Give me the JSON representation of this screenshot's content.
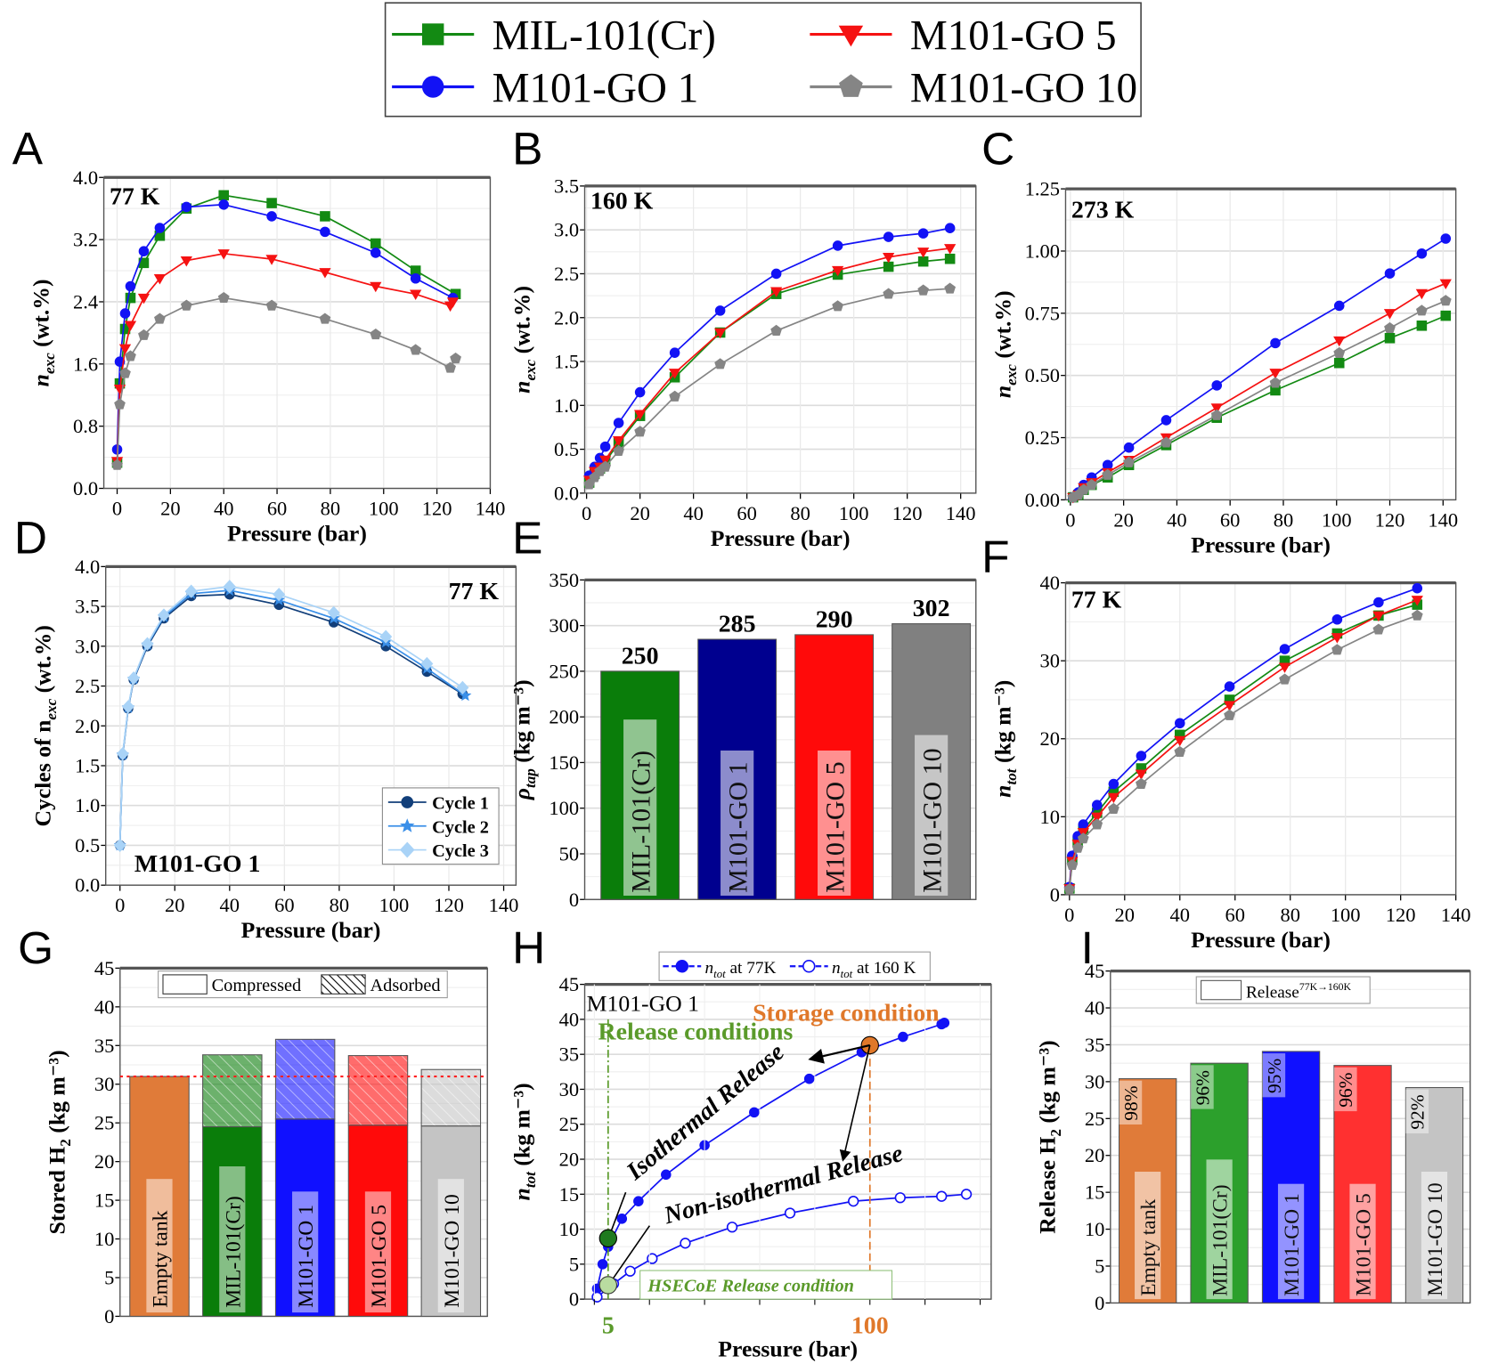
{
  "legend": {
    "items": [
      {
        "name": "MIL-101(Cr)",
        "color": "#138a13",
        "marker": "square"
      },
      {
        "name": "M101-GO 1",
        "color": "#1212f5",
        "marker": "circle"
      },
      {
        "name": "M101-GO 5",
        "color": "#f51212",
        "marker": "triangle-down"
      },
      {
        "name": "M101-GO 10",
        "color": "#858585",
        "marker": "pentagon"
      }
    ]
  },
  "chart_data": [
    {
      "panel": "A",
      "type": "line",
      "annotation": "77 K",
      "xlabel": "Pressure (bar)",
      "ylabel": {
        "sym": "n",
        "sub": "exc",
        "unit": " (wt.%)"
      },
      "ylim": [
        0,
        4.0
      ],
      "xlim": [
        0,
        140
      ],
      "grid": true,
      "yticks": [
        "0.0",
        "0.8",
        "1.6",
        "2.4",
        "3.2",
        "4.0"
      ],
      "xticks": [
        "0",
        "20",
        "40",
        "60",
        "80",
        "100",
        "120",
        "140"
      ],
      "series": [
        {
          "name": "MIL-101(Cr)",
          "x": [
            0,
            1,
            3,
            5,
            10,
            16,
            26,
            40,
            58,
            78,
            97,
            112,
            127
          ],
          "y": [
            0.33,
            1.35,
            2.05,
            2.45,
            2.9,
            3.25,
            3.6,
            3.77,
            3.67,
            3.5,
            3.15,
            2.8,
            2.5
          ]
        },
        {
          "name": "M101-GO 1",
          "x": [
            0,
            1,
            3,
            5,
            10,
            16,
            26,
            40,
            58,
            78,
            97,
            112,
            126
          ],
          "y": [
            0.5,
            1.63,
            2.25,
            2.6,
            3.05,
            3.35,
            3.62,
            3.65,
            3.5,
            3.3,
            3.03,
            2.7,
            2.45
          ]
        },
        {
          "name": "M101-GO 5",
          "x": [
            0,
            1,
            3,
            5,
            10,
            16,
            26,
            40,
            58,
            78,
            97,
            112,
            125,
            126
          ],
          "y": [
            0.35,
            1.28,
            1.8,
            2.1,
            2.45,
            2.7,
            2.93,
            3.02,
            2.95,
            2.78,
            2.6,
            2.5,
            2.35,
            2.4
          ]
        },
        {
          "name": "M101-GO 10",
          "x": [
            0,
            1,
            3,
            5,
            10,
            16,
            26,
            40,
            58,
            78,
            97,
            112,
            125,
            127
          ],
          "y": [
            0.3,
            1.08,
            1.48,
            1.7,
            1.97,
            2.18,
            2.35,
            2.45,
            2.35,
            2.18,
            1.98,
            1.78,
            1.55,
            1.67
          ]
        }
      ]
    },
    {
      "panel": "B",
      "type": "line",
      "annotation": "160 K",
      "xlabel": "Pressure (bar)",
      "ylabel": {
        "sym": "n",
        "sub": "exc",
        "unit": " (wt.%)"
      },
      "ylim": [
        0,
        3.5
      ],
      "xlim": [
        0,
        140
      ],
      "grid": true,
      "yticks": [
        "0.0",
        "0.5",
        "1.0",
        "1.5",
        "2.0",
        "2.5",
        "3.0",
        "3.5"
      ],
      "xticks": [
        "0",
        "20",
        "40",
        "60",
        "80",
        "100",
        "120",
        "140"
      ],
      "series": [
        {
          "name": "MIL-101(Cr)",
          "x": [
            1,
            3,
            5,
            7,
            12,
            20,
            33,
            50,
            71,
            94,
            113,
            126,
            136
          ],
          "y": [
            0.12,
            0.22,
            0.28,
            0.36,
            0.57,
            0.88,
            1.32,
            1.83,
            2.27,
            2.49,
            2.58,
            2.64,
            2.67
          ]
        },
        {
          "name": "M101-GO 1",
          "x": [
            1,
            3,
            5,
            7,
            12,
            20,
            33,
            50,
            71,
            94,
            113,
            126,
            136
          ],
          "y": [
            0.2,
            0.3,
            0.4,
            0.53,
            0.8,
            1.15,
            1.6,
            2.08,
            2.5,
            2.82,
            2.92,
            2.96,
            3.02
          ]
        },
        {
          "name": "M101-GO 5",
          "x": [
            1,
            3,
            5,
            7,
            12,
            20,
            33,
            50,
            71,
            94,
            113,
            126,
            136
          ],
          "y": [
            0.15,
            0.25,
            0.3,
            0.38,
            0.6,
            0.9,
            1.37,
            1.83,
            2.3,
            2.54,
            2.69,
            2.75,
            2.79
          ]
        },
        {
          "name": "M101-GO 10",
          "x": [
            1,
            3,
            5,
            7,
            12,
            20,
            33,
            50,
            71,
            94,
            113,
            126,
            136
          ],
          "y": [
            0.1,
            0.18,
            0.25,
            0.3,
            0.48,
            0.7,
            1.1,
            1.47,
            1.85,
            2.13,
            2.27,
            2.31,
            2.33
          ]
        }
      ]
    },
    {
      "panel": "C",
      "type": "line",
      "annotation": "273 K",
      "xlabel": "Pressure (bar)",
      "ylabel": {
        "sym": "n",
        "sub": "exc",
        "unit": " (wt.%)"
      },
      "ylim": [
        0,
        1.25
      ],
      "xlim": [
        0,
        140
      ],
      "grid": true,
      "yticks": [
        "0.00",
        "0.25",
        "0.50",
        "0.75",
        "1.00",
        "1.25"
      ],
      "xticks": [
        "0",
        "20",
        "40",
        "60",
        "80",
        "100",
        "120",
        "140"
      ],
      "series": [
        {
          "name": "MIL-101(Cr)",
          "x": [
            1,
            3,
            5,
            8,
            14,
            22,
            36,
            55,
            77,
            101,
            120,
            132,
            141
          ],
          "y": [
            0.01,
            0.02,
            0.04,
            0.06,
            0.09,
            0.14,
            0.22,
            0.33,
            0.44,
            0.55,
            0.65,
            0.7,
            0.74
          ]
        },
        {
          "name": "M101-GO 1",
          "x": [
            1,
            3,
            5,
            8,
            14,
            22,
            36,
            55,
            77,
            101,
            120,
            132,
            141
          ],
          "y": [
            0.01,
            0.03,
            0.06,
            0.09,
            0.14,
            0.21,
            0.32,
            0.46,
            0.63,
            0.78,
            0.91,
            0.99,
            1.05
          ]
        },
        {
          "name": "M101-GO 5",
          "x": [
            1,
            3,
            5,
            8,
            14,
            22,
            36,
            55,
            77,
            101,
            120,
            132,
            141
          ],
          "y": [
            0.01,
            0.02,
            0.05,
            0.07,
            0.11,
            0.16,
            0.25,
            0.37,
            0.51,
            0.64,
            0.75,
            0.83,
            0.87
          ]
        },
        {
          "name": "M101-GO 10",
          "x": [
            1,
            3,
            5,
            8,
            14,
            22,
            36,
            55,
            77,
            101,
            120,
            132,
            141
          ],
          "y": [
            0.01,
            0.02,
            0.04,
            0.06,
            0.1,
            0.15,
            0.23,
            0.34,
            0.47,
            0.59,
            0.69,
            0.76,
            0.8
          ]
        }
      ]
    },
    {
      "panel": "D",
      "type": "line",
      "annotation": "77 K",
      "sample": "M101-GO 1",
      "xlabel": "Pressure (bar)",
      "ylabel": {
        "sym": "Cycles of n",
        "sub": "exc",
        "unit": " (wt.%)"
      },
      "ylim": [
        0,
        4.0
      ],
      "xlim": [
        0,
        140
      ],
      "grid": true,
      "legend_position": "bottom-right",
      "yticks": [
        "0.0",
        "0.5",
        "1.0",
        "1.5",
        "2.0",
        "2.5",
        "3.0",
        "3.5",
        "4.0"
      ],
      "xticks": [
        "0",
        "20",
        "40",
        "60",
        "80",
        "100",
        "120",
        "140"
      ],
      "series": [
        {
          "name": "Cycle 1",
          "color": "#123f7a",
          "marker": "circle",
          "x": [
            0,
            1,
            3,
            5,
            10,
            16,
            26,
            40,
            58,
            78,
            97,
            112,
            125
          ],
          "y": [
            0.5,
            1.63,
            2.22,
            2.58,
            3.0,
            3.35,
            3.63,
            3.65,
            3.52,
            3.3,
            3.0,
            2.68,
            2.4
          ]
        },
        {
          "name": "Cycle 2",
          "color": "#3a8fe8",
          "marker": "star",
          "x": [
            0,
            1,
            3,
            5,
            10,
            16,
            26,
            40,
            58,
            78,
            97,
            112,
            126
          ],
          "y": [
            0.5,
            1.64,
            2.23,
            2.59,
            3.02,
            3.37,
            3.66,
            3.7,
            3.58,
            3.35,
            3.05,
            2.72,
            2.38
          ]
        },
        {
          "name": "Cycle 3",
          "color": "#a9d3f7",
          "marker": "diamond",
          "x": [
            0,
            1,
            3,
            5,
            10,
            16,
            26,
            40,
            58,
            78,
            97,
            112,
            125
          ],
          "y": [
            0.5,
            1.65,
            2.24,
            2.6,
            3.03,
            3.39,
            3.69,
            3.75,
            3.65,
            3.42,
            3.12,
            2.78,
            2.48
          ]
        }
      ]
    },
    {
      "panel": "E",
      "type": "bar",
      "ylabel": {
        "sym": "ρ",
        "sub": "tap",
        "unit": " (kg m⁻³)"
      },
      "ylim": [
        0,
        350
      ],
      "grid": true,
      "yticks": [
        "0",
        "50",
        "100",
        "150",
        "200",
        "250",
        "300",
        "350"
      ],
      "categories": [
        "MIL-101(Cr)",
        "M101-GO 1",
        "M101-GO 5",
        "M101-GO 10"
      ],
      "values": [
        250,
        285,
        290,
        302
      ],
      "data_labels": [
        "250",
        "285",
        "290",
        "302"
      ],
      "colors": [
        "#0a7d0a",
        "#00008f",
        "#ff0a0a",
        "#808080"
      ]
    },
    {
      "panel": "F",
      "type": "line",
      "annotation": "77 K",
      "xlabel": "Pressure (bar)",
      "ylabel": {
        "sym": "n",
        "sub": "tot",
        "unit": " (kg m⁻³)"
      },
      "ylim": [
        0,
        40
      ],
      "xlim": [
        0,
        140
      ],
      "grid": true,
      "yticks": [
        "0",
        "10",
        "20",
        "30",
        "40"
      ],
      "xticks": [
        "0",
        "20",
        "40",
        "60",
        "80",
        "100",
        "120",
        "140"
      ],
      "series": [
        {
          "name": "MIL-101(Cr)",
          "x": [
            0,
            1,
            3,
            5,
            10,
            16,
            26,
            40,
            58,
            78,
            97,
            112,
            126
          ],
          "y": [
            0.8,
            4.5,
            6.8,
            8.3,
            10.5,
            13.2,
            16.2,
            20.5,
            25,
            30,
            33.5,
            35.8,
            37.2
          ]
        },
        {
          "name": "M101-GO 1",
          "x": [
            0,
            1,
            3,
            5,
            10,
            16,
            26,
            40,
            58,
            78,
            97,
            112,
            126
          ],
          "y": [
            1,
            5,
            7.5,
            9,
            11.5,
            14.2,
            17.8,
            22,
            26.7,
            31.5,
            35.3,
            37.5,
            39.3
          ]
        },
        {
          "name": "M101-GO 5",
          "x": [
            0,
            1,
            3,
            5,
            10,
            16,
            26,
            40,
            58,
            78,
            97,
            112,
            126
          ],
          "y": [
            0.8,
            4.3,
            6.5,
            8,
            10,
            12.5,
            15.5,
            19.8,
            24.3,
            29.2,
            33,
            35.8,
            37.8
          ]
        },
        {
          "name": "M101-GO 10",
          "x": [
            0,
            1,
            3,
            5,
            10,
            16,
            26,
            40,
            58,
            78,
            97,
            112,
            126
          ],
          "y": [
            0.7,
            3.8,
            6,
            7.2,
            9,
            11,
            14.2,
            18.3,
            23,
            27.6,
            31.4,
            34,
            35.8
          ]
        }
      ]
    },
    {
      "panel": "G",
      "type": "stacked-bar",
      "ylabel": {
        "sym": "Stored H",
        "sub": "2",
        "unit": " (kg m⁻³)"
      },
      "ylim": [
        0,
        45
      ],
      "grid": true,
      "legend_position": "top",
      "yticks": [
        "0",
        "5",
        "10",
        "15",
        "20",
        "25",
        "30",
        "35",
        "40",
        "45"
      ],
      "categories": [
        "Empty tank",
        "MIL-101(Cr)",
        "M101-GO 1",
        "M101-GO 5",
        "M101-GO 10"
      ],
      "series": [
        {
          "name": "Compressed",
          "values": [
            31,
            24.5,
            25.5,
            24.7,
            24.6
          ]
        },
        {
          "name": "Adsorbed",
          "values": [
            0,
            9.3,
            10.3,
            9.0,
            7.3
          ]
        }
      ],
      "reference_line": 31,
      "colors": [
        "#e07b39",
        "#0a7d0a",
        "#1010ff",
        "#ff0a0a",
        "#c4c4c4"
      ],
      "reference_color": "#ff2020"
    },
    {
      "panel": "H",
      "type": "line",
      "sample": "M101-GO 1",
      "xlabel": "Pressure (bar)",
      "ylabel": {
        "sym": "n",
        "sub": "tot",
        "unit": " (kg m⁻³)"
      },
      "ylim": [
        0,
        45
      ],
      "grid": true,
      "legend_position": "top",
      "yticks": [
        "0",
        "5",
        "10",
        "15",
        "20",
        "25",
        "30",
        "35",
        "40",
        "45"
      ],
      "xticks": [
        {
          "label": "5",
          "value": 5,
          "color": "#5a9a2a"
        },
        {
          "label": "100",
          "value": 100,
          "color": "#e0782a"
        }
      ],
      "series": [
        {
          "name": "n_tot at 77K",
          "label_sym": "n",
          "label_sub": "tot",
          "label_rest": " at 77K",
          "color": "#1212f5",
          "filled": true,
          "x": [
            1,
            3,
            5,
            10,
            16,
            26,
            40,
            58,
            78,
            97,
            112,
            126,
            127
          ],
          "y": [
            1.5,
            5,
            7.5,
            11.5,
            14,
            17.8,
            22,
            26.7,
            31.5,
            35.3,
            37.5,
            39.3,
            39.5
          ]
        },
        {
          "name": "n_tot at 160 K",
          "label_sym": "n",
          "label_sub": "tot",
          "label_rest": " at 160 K",
          "color": "#1212f5",
          "filled": false,
          "x": [
            1,
            7,
            13,
            21,
            33,
            50,
            71,
            94,
            111,
            126,
            135
          ],
          "y": [
            0.3,
            2.2,
            4,
            5.8,
            8,
            10.3,
            12.3,
            14,
            14.5,
            14.7,
            15
          ]
        }
      ],
      "annotations": {
        "sample": "M101-GO 1",
        "release": "Release conditions",
        "storage": "Storage condition",
        "isothermal": "Isothermal Release",
        "non_isothermal": "Non-isothermal Release",
        "hsecoe": "HSECoE Release condition"
      },
      "points": {
        "release_77K": [
          5,
          8.7
        ],
        "storage": [
          100,
          36.3
        ],
        "hsecoe": [
          5,
          2
        ]
      },
      "colors": {
        "release": "#5a9a2a",
        "storage": "#e0782a",
        "hsecoe_fill": "#b9dca0"
      }
    },
    {
      "panel": "I",
      "type": "bar",
      "ylabel": {
        "sym": "Release H",
        "sub": "2",
        "unit": " (kg m⁻³)"
      },
      "ylim": [
        0,
        45
      ],
      "grid": true,
      "legend_position": "top",
      "legend": {
        "main": "Release",
        "sup": "77K→160K"
      },
      "yticks": [
        "0",
        "5",
        "10",
        "15",
        "20",
        "25",
        "30",
        "35",
        "40",
        "45"
      ],
      "categories": [
        "Empty tank",
        "MIL-101(Cr)",
        "M101-GO 1",
        "M101-GO 5",
        "M101-GO 10"
      ],
      "values": [
        30.4,
        32.5,
        34.1,
        32.2,
        29.2
      ],
      "data_labels": [
        "98%",
        "96%",
        "95%",
        "96%",
        "92%"
      ],
      "colors": [
        "#e07b39",
        "#2ca02c",
        "#1010ff",
        "#ff3030",
        "#c4c4c4"
      ]
    }
  ]
}
